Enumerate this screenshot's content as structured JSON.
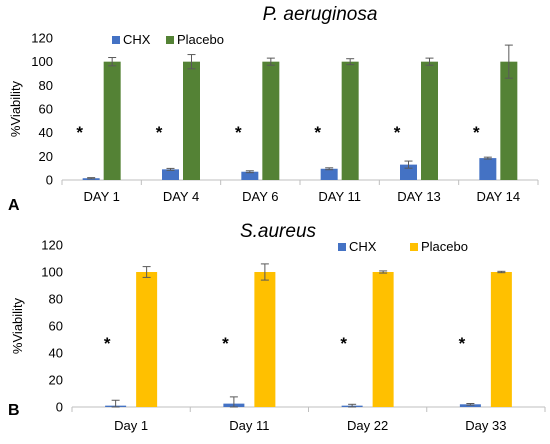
{
  "chart_data": [
    {
      "type": "bar",
      "panel_label": "A",
      "title": "P. aeruginosa",
      "ylabel": "%Viability",
      "ylim": [
        0,
        120
      ],
      "yticks": [
        0,
        20,
        40,
        60,
        80,
        100,
        120
      ],
      "categories": [
        "DAY 1",
        "DAY 4",
        "DAY 6",
        "DAY 11",
        "DAY  13",
        "DAY  14"
      ],
      "legend_position": "top-left",
      "grid": false,
      "series": [
        {
          "name": "CHX",
          "color": "#4472C4",
          "values": [
            1.5,
            9,
            7,
            9.5,
            13,
            18.5
          ],
          "errors": [
            0.5,
            0.8,
            0.8,
            0.8,
            3,
            0.8
          ]
        },
        {
          "name": "Placebo",
          "color": "#548235",
          "values": [
            100,
            100,
            100,
            100,
            100,
            100
          ],
          "errors": [
            3.5,
            6,
            3,
            2.5,
            3,
            14
          ]
        }
      ],
      "annotations": [
        "*",
        "*",
        "*",
        "*",
        "*",
        "*"
      ]
    },
    {
      "type": "bar",
      "panel_label": "B",
      "title": "S.aureus",
      "ylabel": "%Viability",
      "ylim": [
        0,
        120
      ],
      "yticks": [
        0,
        20,
        40,
        60,
        80,
        100,
        120
      ],
      "categories": [
        "Day 1",
        "Day 11",
        "Day 22",
        "Day 33"
      ],
      "legend_position": "top-right",
      "grid": false,
      "series": [
        {
          "name": "CHX",
          "color": "#4472C4",
          "values": [
            1,
            2.5,
            1,
            2
          ],
          "errors": [
            4,
            5,
            1,
            0.6
          ]
        },
        {
          "name": "Placebo",
          "color": "#FFC000",
          "values": [
            100,
            100,
            100,
            100
          ],
          "errors": [
            4,
            6,
            0.8,
            0.5
          ]
        }
      ],
      "annotations": [
        "*",
        "*",
        "*",
        "*"
      ]
    }
  ]
}
